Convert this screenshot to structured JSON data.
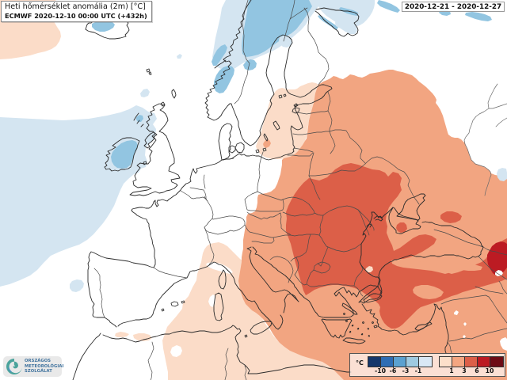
{
  "header": {
    "title_line1": "Heti hőmérséklet anomália (2m) [°C]",
    "title_line2": "ECMWF 2020-12-10 00:00 UTC (+432h)"
  },
  "date_badge": {
    "text": "2020-12-21 - 2020-12-27"
  },
  "legend": {
    "unit": "°C",
    "cold_colors": [
      "#15376b",
      "#2e6db4",
      "#5ba1d0",
      "#9ecae1",
      "#d9e8f5"
    ],
    "warm_colors": [
      "#fcdfca",
      "#f4a681",
      "#dc5f48",
      "#bc1b23",
      "#6d0b15"
    ],
    "cold_labels": [
      "-10",
      "-6",
      "-3",
      "-1"
    ],
    "warm_labels": [
      "1",
      "3",
      "6",
      "10"
    ]
  },
  "logo": {
    "line1": "ORSZÁGOS",
    "line2": "METEOROLÓGIAI",
    "line3": "SZOLGÁLAT"
  },
  "map": {
    "palette": {
      "anomaly_minus3_minus1": "#92c5e1",
      "anomaly_minus1_0": "#d4e5f1",
      "neutral": "#ffffff",
      "anomaly_1_3": "#fbdcc8",
      "anomaly_3_6": "#f2a581",
      "anomaly_6_10": "#dc5f48",
      "anomaly_over_10": "#bc1b23",
      "coastline": "#2b2b2b",
      "border": "#4a4a4a",
      "river": "#6a6a6a"
    },
    "description": "ECMWF weekly 2m temperature anomaly forecast map of Europe"
  }
}
